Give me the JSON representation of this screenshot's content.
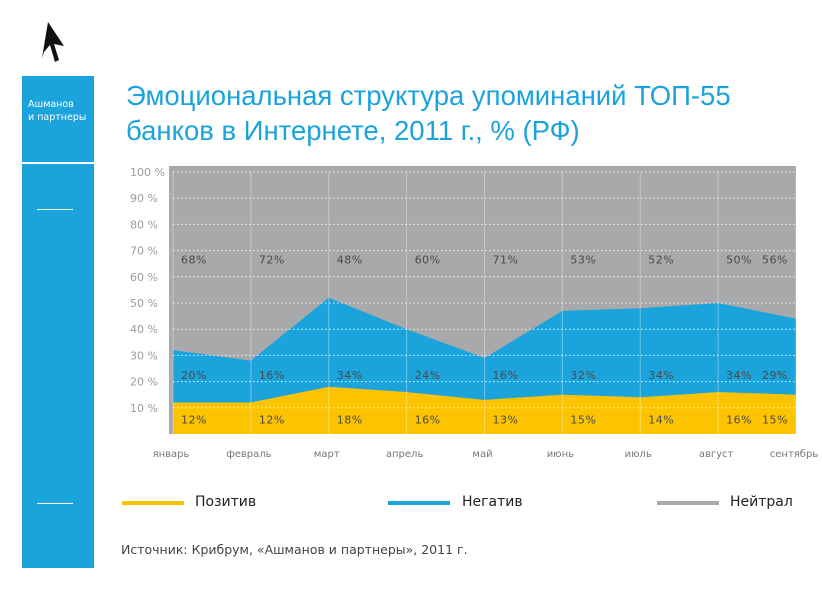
{
  "brand": {
    "line1": "Ашманов",
    "line2": "и партнеры"
  },
  "page_title": "Эмоциональная структура упоминаний ТОП-55 банков в Интернете, 2011 г., % (РФ)",
  "source": "Источник: Крибрум, «Ашманов и партнеры», 2011 г.",
  "colors": {
    "accent": "#1ba3dc",
    "positive": "#fcc400",
    "negative": "#1ba3dc",
    "neutral": "#a7a9ab"
  },
  "chart_data": {
    "type": "area",
    "stacked": true,
    "categories": [
      "январь",
      "февраль",
      "март",
      "апрель",
      "май",
      "июнь",
      "июль",
      "август",
      "сентябрь"
    ],
    "y_ticks": [
      "100 %",
      "90 %",
      "80 %",
      "70 %",
      "60 %",
      "50 %",
      "40 %",
      "30 %",
      "20 %",
      "10 %"
    ],
    "ylim": [
      0,
      100
    ],
    "legend_position": "bottom",
    "series": [
      {
        "name": "Позитив",
        "color": "#fcc400",
        "values": [
          12,
          12,
          18,
          16,
          13,
          15,
          14,
          16,
          15
        ]
      },
      {
        "name": "Негатив",
        "color": "#1ba3dc",
        "values": [
          20,
          16,
          34,
          24,
          16,
          32,
          34,
          34,
          29
        ]
      },
      {
        "name": "Нейтрал",
        "color": "#a7a9ab",
        "values": [
          68,
          72,
          48,
          60,
          71,
          53,
          52,
          50,
          56
        ]
      }
    ]
  }
}
